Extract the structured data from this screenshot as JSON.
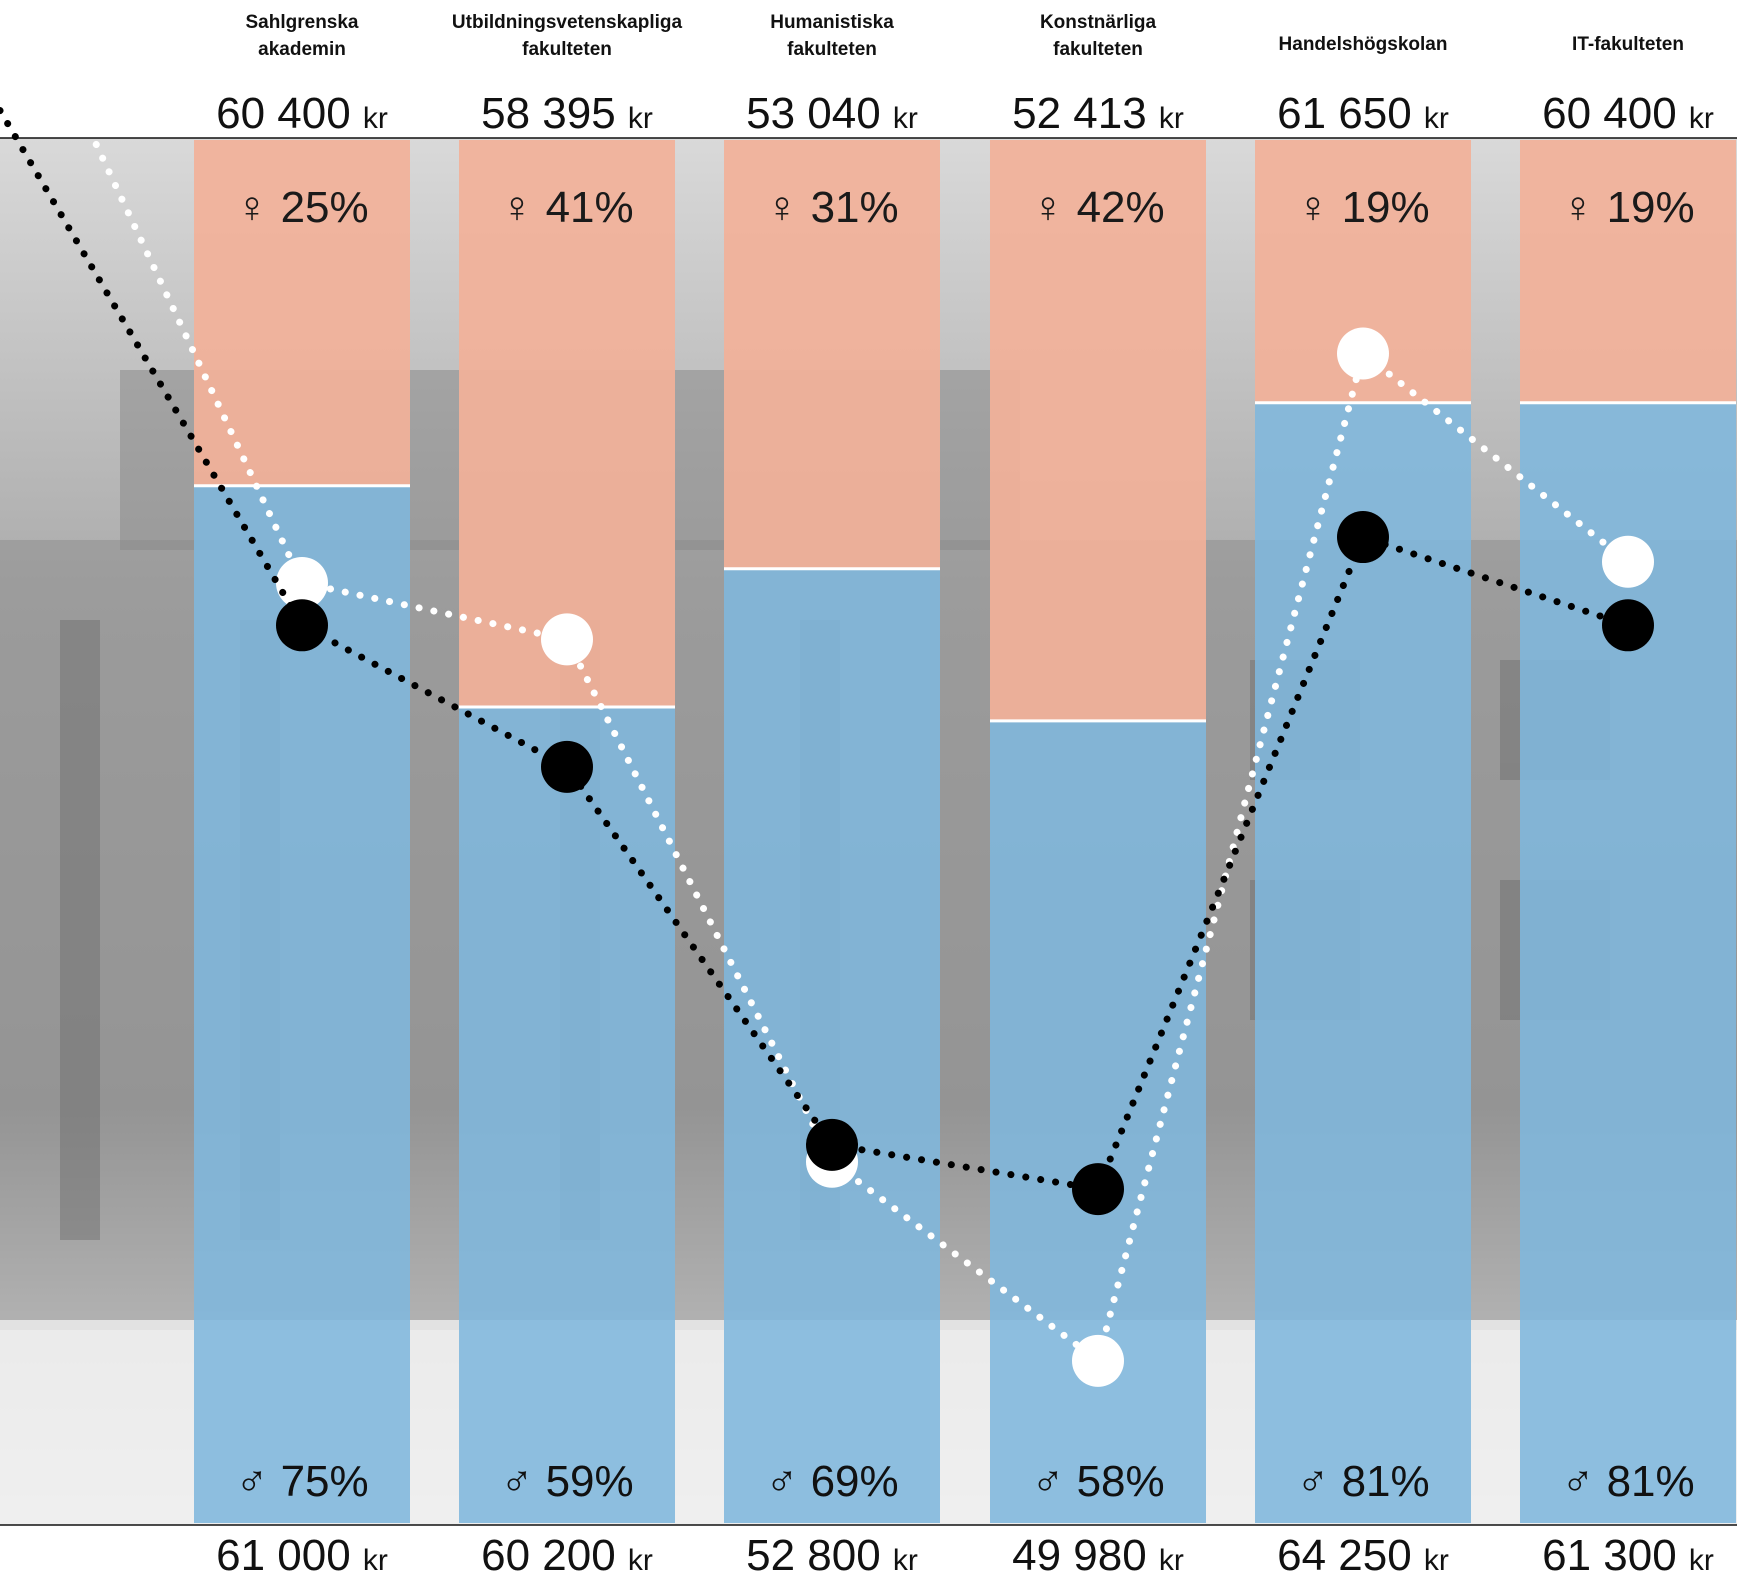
{
  "chart_data": {
    "type": "bar",
    "categories": [
      "Sahlgrenska akademin",
      "Utbildningsvetenskapliga fakulteten",
      "Humanistiska fakulteten",
      "Konstnärliga fakulteten",
      "Handelshögskolan",
      "IT-fakulteten"
    ],
    "category_lines": [
      [
        "Sahlgrenska",
        "akademin"
      ],
      [
        "Utbildningsvetenskapliga",
        "fakulteten"
      ],
      [
        "Humanistiska",
        "fakulteten"
      ],
      [
        "Konstnärliga",
        "fakulteten"
      ],
      [
        "Handelshögskolan"
      ],
      [
        "IT-fakulteten"
      ]
    ],
    "top_salaries": [
      "60 400",
      "58 395",
      "53 040",
      "52 413",
      "61 650",
      "60 400"
    ],
    "bottom_salaries": [
      "61 000",
      "60 200",
      "52 800",
      "49 980",
      "64 250",
      "61 300"
    ],
    "currency": "kr",
    "female_share_labels": [
      "25%",
      "41%",
      "31%",
      "42%",
      "19%",
      "19%"
    ],
    "male_share_labels": [
      "75%",
      "59%",
      "69%",
      "58%",
      "81%",
      "81%"
    ],
    "series": [
      {
        "values": [
          25,
          41,
          31,
          42,
          19,
          19
        ]
      },
      {
        "values": [
          75,
          59,
          69,
          58,
          81,
          81
        ]
      }
    ],
    "black_line_values": [
      60400,
      58395,
      53040,
      52413,
      61650,
      60400
    ],
    "white_line_values": [
      61000,
      60200,
      52800,
      49980,
      64250,
      61300
    ],
    "line_ylim": [
      49000,
      66000
    ],
    "female_symbol": "♀",
    "male_symbol": "♂"
  },
  "colors": {
    "female": "#f2b199",
    "male": "#7fb7dd",
    "background_photo": "#a6a6a6",
    "black_line": "#000000",
    "white_line": "#ffffff"
  }
}
